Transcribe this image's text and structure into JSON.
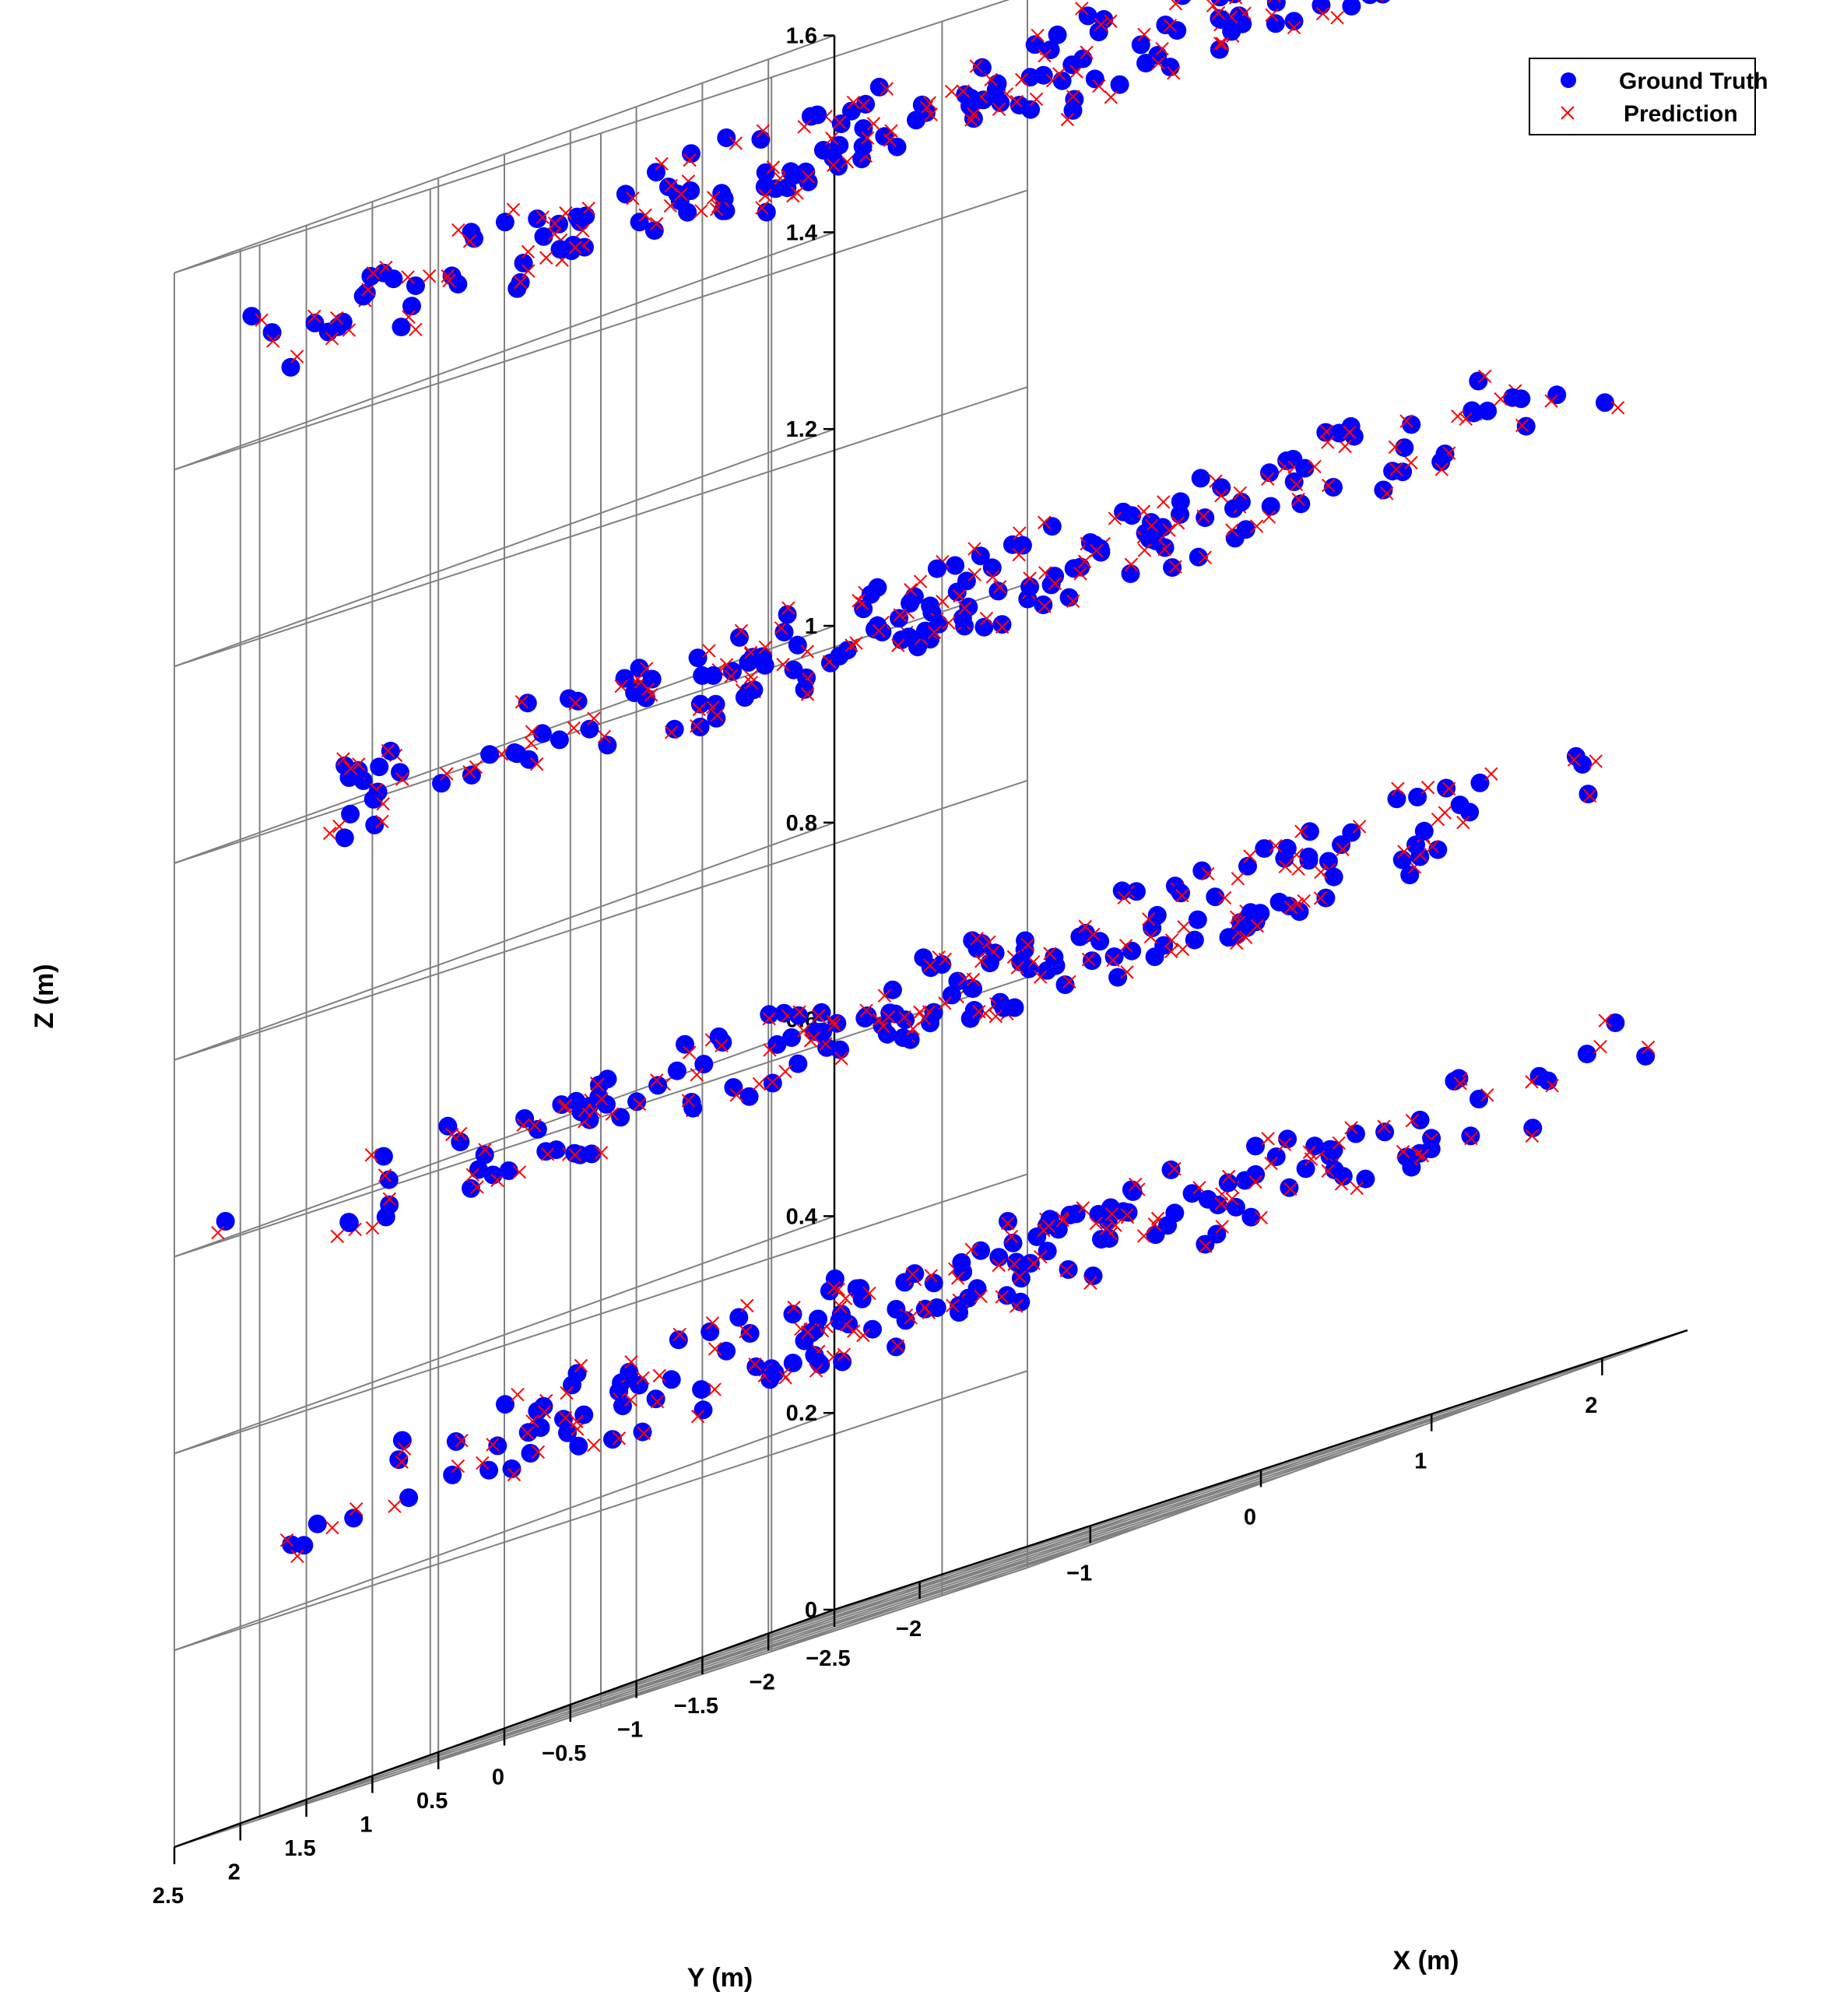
{
  "chart_data": {
    "type": "scatter",
    "projection": "3d",
    "grid": true,
    "legend_position": "top-right",
    "xlabel": "X (m)",
    "ylabel": "Y (m)",
    "zlabel": "Z (m)",
    "xlim": [
      -2.5,
      2.5
    ],
    "ylim": [
      -2.5,
      2.5
    ],
    "zlim": [
      0,
      1.6
    ],
    "x_ticks": [
      -2,
      -1,
      0,
      1,
      2
    ],
    "x_tick_labels": [
      "−2",
      "−1",
      "0",
      "1",
      "2"
    ],
    "y_ticks": [
      2.5,
      2,
      1.5,
      1,
      0.5,
      0,
      -0.5,
      -1,
      -1.5,
      -2,
      -2.5
    ],
    "y_tick_labels": [
      "2.5",
      "2",
      "1.5",
      "1",
      "0.5",
      "0",
      "−0.5",
      "−1",
      "−1.5",
      "−2",
      "−2.5"
    ],
    "z_ticks": [
      0,
      0.2,
      0.4,
      0.6,
      0.8,
      1,
      1.2,
      1.4,
      1.6
    ],
    "z_tick_labels": [
      "0",
      "0.2",
      "0.4",
      "0.6",
      "0.8",
      "1",
      "1.2",
      "1.4",
      "1.6"
    ],
    "layer_heights": [
      0.3,
      0.6,
      1.0,
      1.5
    ],
    "points_per_layer": 150,
    "series": [
      {
        "name": "Ground Truth",
        "marker": "filled-circle",
        "color": "#0000ff"
      },
      {
        "name": "Prediction",
        "marker": "x",
        "color": "#ff0000"
      }
    ]
  }
}
